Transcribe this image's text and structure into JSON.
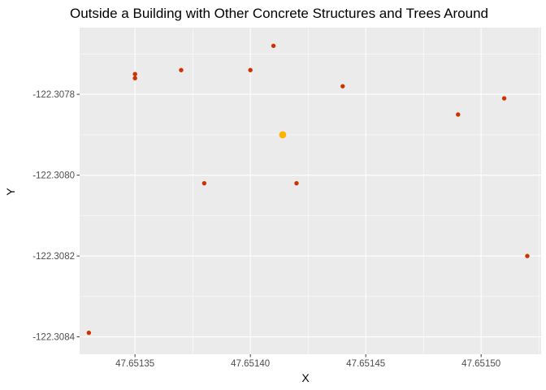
{
  "chart_data": {
    "type": "scatter",
    "title": "Outside a Building with Other Concrete Structures and Trees Around",
    "xlabel": "X",
    "ylabel": "Y",
    "xlim": [
      47.651326,
      47.651526
    ],
    "ylim": [
      -122.308443,
      -122.307635
    ],
    "x_ticks": [
      {
        "value": 47.65135,
        "label": "47.65135"
      },
      {
        "value": 47.6514,
        "label": "47.65140"
      },
      {
        "value": 47.65145,
        "label": "47.65145"
      },
      {
        "value": 47.6515,
        "label": "47.65150"
      }
    ],
    "y_ticks": [
      {
        "value": -122.3078,
        "label": "-122.3078"
      },
      {
        "value": -122.308,
        "label": "-122.3080"
      },
      {
        "value": -122.3082,
        "label": "-122.3082"
      },
      {
        "value": -122.3084,
        "label": "-122.3084"
      }
    ],
    "grid": true,
    "panel_background": "#ebebeb",
    "grid_color": "#ffffff",
    "series": [
      {
        "color": "#cc3300",
        "points": [
          {
            "x": 47.65133,
            "y": -122.30839
          },
          {
            "x": 47.65135,
            "y": -122.30775
          },
          {
            "x": 47.65135,
            "y": -122.30776
          },
          {
            "x": 47.65137,
            "y": -122.30774
          },
          {
            "x": 47.65138,
            "y": -122.30802
          },
          {
            "x": 47.6514,
            "y": -122.30774
          },
          {
            "x": 47.65141,
            "y": -122.30768
          },
          {
            "x": 47.65142,
            "y": -122.30802
          },
          {
            "x": 47.65144,
            "y": -122.30778
          },
          {
            "x": 47.65149,
            "y": -122.30785
          },
          {
            "x": 47.65151,
            "y": -122.30781
          },
          {
            "x": 47.65152,
            "y": -122.3082
          }
        ]
      },
      {
        "color": "#ffb300",
        "points": [
          {
            "x": 47.651414,
            "y": -122.3079
          }
        ]
      }
    ]
  }
}
